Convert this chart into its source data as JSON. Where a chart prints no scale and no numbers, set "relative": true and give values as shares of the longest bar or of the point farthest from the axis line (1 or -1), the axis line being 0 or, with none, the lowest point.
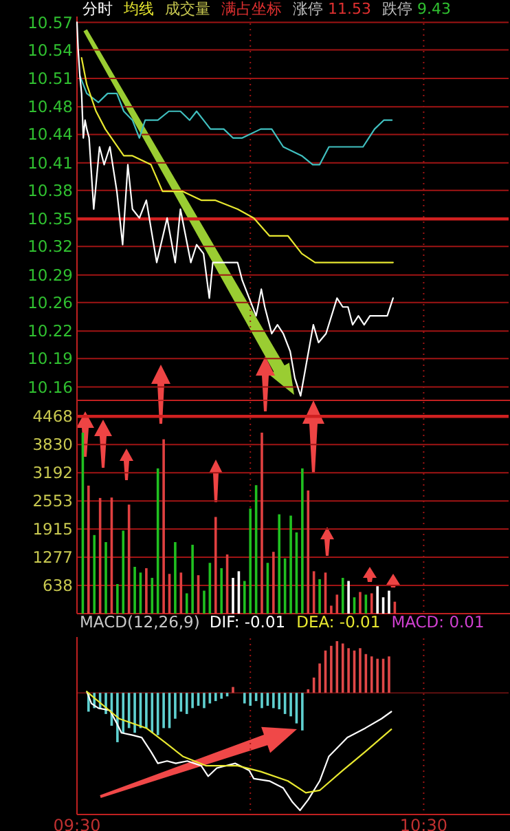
{
  "chart_data": [
    {
      "type": "line",
      "legend": "top",
      "grid": true,
      "tick_labels": "y",
      "xlim": [
        9.5,
        10.745
      ],
      "xticks": [
        9.5,
        10,
        10.5
      ],
      "ylim": [
        10.145,
        10.575
      ],
      "yticks": [
        10.57,
        {
          "value": 10.539,
          "label": "10.54"
        },
        {
          "value": 10.507,
          "label": "10.51"
        },
        {
          "value": 10.475,
          "label": "10.48"
        },
        {
          "value": 10.444,
          "label": "10.44"
        },
        {
          "value": 10.412,
          "label": "10.41"
        },
        {
          "value": 10.381,
          "label": "10.38"
        },
        {
          "value": 10.349,
          "label": "10.35"
        },
        {
          "value": 10.318,
          "label": "10.32"
        },
        {
          "value": 10.286,
          "label": "10.29"
        },
        {
          "value": 10.255,
          "label": "10.26"
        },
        {
          "value": 10.223,
          "label": "10.22"
        },
        {
          "value": 10.192,
          "label": "10.19"
        },
        10.16
      ],
      "ref_lines": [
        {
          "axis": "y",
          "value": 10.349,
          "color": "#d02020"
        }
      ],
      "annotations": [
        "成交量",
        "满占坐标",
        "涨停 11.53",
        "跌停 9.43"
      ],
      "series": [
        {
          "color": "#40c0c0",
          "x": [
            9.5083,
            9.5283,
            9.5617,
            9.5883,
            9.615,
            9.635,
            9.66,
            9.68,
            9.6967,
            9.7333,
            9.765,
            9.7983,
            9.825,
            9.845,
            9.865,
            9.885,
            9.9033,
            9.9233,
            9.95,
            9.9767,
            10.03,
            10.0617,
            10.095,
            10.1483,
            10.18,
            10.2,
            10.2267,
            10.26,
            10.325,
            10.3583,
            10.385,
            10.4083
          ],
          "values": [
            10.51,
            10.49,
            10.48,
            10.49,
            10.49,
            10.47,
            10.46,
            10.44,
            10.46,
            10.46,
            10.47,
            10.47,
            10.46,
            10.47,
            10.46,
            10.45,
            10.45,
            10.45,
            10.44,
            10.44,
            10.45,
            10.45,
            10.43,
            10.42,
            10.41,
            10.41,
            10.43,
            10.43,
            10.43,
            10.45,
            10.46,
            10.46
          ]
        },
        {
          "name": "分时",
          "color": "#ffffff",
          "x": [
            9.5,
            9.5033,
            9.5083,
            9.5133,
            9.5183,
            9.5233,
            9.5283,
            9.535,
            9.5483,
            9.565,
            9.5783,
            9.595,
            9.615,
            9.6317,
            9.6467,
            9.66,
            9.68,
            9.7,
            9.73,
            9.76,
            9.7833,
            9.7983,
            9.8283,
            9.845,
            9.865,
            9.8817,
            9.8917,
            9.93,
            9.9633,
            9.9767,
            9.9967,
            10.0167,
            10.0317,
            10.0417,
            10.0617,
            10.0783,
            10.095,
            10.115,
            10.1283,
            10.145,
            10.1633,
            10.1817,
            10.1967,
            10.2183,
            10.25,
            10.2667,
            10.2817,
            10.295,
            10.3117,
            10.3283,
            10.345,
            10.395,
            10.4117
          ],
          "values": [
            10.57,
            10.54,
            10.51,
            10.49,
            10.44,
            10.46,
            10.45,
            10.44,
            10.36,
            10.43,
            10.41,
            10.43,
            10.38,
            10.32,
            10.41,
            10.36,
            10.35,
            10.37,
            10.3,
            10.35,
            10.3,
            10.36,
            10.3,
            10.32,
            10.31,
            10.26,
            10.3,
            10.3,
            10.3,
            10.28,
            10.26,
            10.24,
            10.27,
            10.25,
            10.22,
            10.23,
            10.22,
            10.2,
            10.17,
            10.15,
            10.19,
            10.23,
            10.21,
            10.22,
            10.26,
            10.25,
            10.25,
            10.23,
            10.24,
            10.23,
            10.24,
            10.24,
            10.26
          ]
        },
        {
          "name": "均线",
          "color": "#e8e830",
          "x": [
            9.5133,
            9.5283,
            9.555,
            9.5817,
            9.635,
            9.66,
            9.7133,
            9.7467,
            9.805,
            9.8583,
            9.8983,
            9.9633,
            10.01,
            10.055,
            10.1083,
            10.1483,
            10.1867,
            10.24,
            10.305,
            10.4117
          ],
          "values": [
            10.53,
            10.5,
            10.47,
            10.45,
            10.42,
            10.42,
            10.41,
            10.38,
            10.38,
            10.37,
            10.37,
            10.36,
            10.35,
            10.33,
            10.33,
            10.31,
            10.3,
            10.3,
            10.3,
            10.3
          ]
        }
      ]
    },
    {
      "type": "bar",
      "grid": true,
      "tick_labels": "y",
      "xlim": [
        9.5,
        10.745
      ],
      "xticks": [
        9.5,
        10,
        10.5
      ],
      "ylim": [
        0,
        4800
      ],
      "yticks": [
        638,
        1277,
        1915,
        2553,
        3192,
        3830,
        4468
      ],
      "ref_lines": [
        {
          "axis": "y",
          "value": 4468,
          "color": "#d02020"
        }
      ],
      "x": [
        9.5167,
        9.5333,
        9.55,
        9.5667,
        9.5833,
        9.6,
        9.6167,
        9.6333,
        9.65,
        9.6667,
        9.6833,
        9.7,
        9.7167,
        9.7333,
        9.75,
        9.7667,
        9.7833,
        9.8,
        9.8167,
        9.8333,
        9.85,
        9.8667,
        9.8833,
        9.9,
        9.9167,
        9.9333,
        9.95,
        9.9667,
        9.9833,
        10,
        10.0167,
        10.0333,
        10.05,
        10.0667,
        10.0833,
        10.1,
        10.1167,
        10.1333,
        10.15,
        10.1667,
        10.1833,
        10.2,
        10.2167,
        10.2333,
        10.25,
        10.2667,
        10.2833,
        10.3,
        10.3167,
        10.3333,
        10.35,
        10.3667,
        10.3833,
        10.4,
        10.4167
      ],
      "values": [
        4100,
        2900,
        1780,
        2620,
        1620,
        2630,
        670,
        1880,
        2470,
        1060,
        930,
        1030,
        810,
        3290,
        3950,
        900,
        1620,
        930,
        460,
        1560,
        870,
        520,
        1150,
        2190,
        1030,
        1340,
        810,
        960,
        740,
        2380,
        2910,
        4100,
        1150,
        1400,
        2250,
        1250,
        2220,
        1840,
        3290,
        2790,
        960,
        780,
        930,
        180,
        430,
        810,
        740,
        370,
        490,
        430,
        460,
        620,
        370,
        520,
        270
      ],
      "colors": [
        "#20c020",
        "#e04040",
        "#20c020",
        "#e04040",
        "#20c020",
        "#e04040",
        "#20c020",
        "#20c020",
        "#e04040",
        "#20c020",
        "#20c020",
        "#e04040",
        "#20c020",
        "#20c020",
        "#e04040",
        "#e04040",
        "#20c020",
        "#e04040",
        "#20c020",
        "#20c020",
        "#e04040",
        "#20c020",
        "#20c020",
        "#e04040",
        "#20c020",
        "#e04040",
        "#ffffff",
        "#ffffff",
        "#20c020",
        "#20c020",
        "#20c020",
        "#e04040",
        "#20c020",
        "#e04040",
        "#20c020",
        "#20c020",
        "#20c020",
        "#20c020",
        "#20c020",
        "#e04040",
        "#e04040",
        "#20c020",
        "#e04040",
        "#e04040",
        "#e04040",
        "#20c020",
        "#ffffff",
        "#20c020",
        "#e04040",
        "#20c020",
        "#e04040",
        "#ffffff",
        "#ffffff",
        "#ffffff",
        "#e04040"
      ]
    },
    {
      "type": "bar",
      "title": "MACD(12,26,9)",
      "relative": true,
      "legend": "top",
      "ref_lines": [
        {
          "axis": "y",
          "value": 0,
          "color": "#601010"
        }
      ],
      "grid": "x",
      "tick_labels": "x",
      "xlim": [
        9.5,
        10.745
      ],
      "xticks": [
        {
          "value": 9.5,
          "label": "09:30"
        },
        {
          "value": 10,
          "label": null
        },
        {
          "value": 10.5,
          "label": "10:30"
        }
      ],
      "series": [
        {
          "type": "line",
          "name": "DIF: -0.01",
          "color": "#ffffff",
          "x": [
            9.5283,
            9.5417,
            9.5617,
            9.595,
            9.615,
            9.6283,
            9.66,
            9.6867,
            9.7133,
            9.7333,
            9.76,
            9.785,
            9.8183,
            9.8583,
            9.8783,
            9.9033,
            9.9567,
            9.9967,
            10.01,
            10.055,
            10.095,
            10.1217,
            10.1433,
            10.1667,
            10.2,
            10.2267,
            10.28,
            10.3317,
            10.3783,
            10.4067
          ],
          "values": [
            0.01,
            -0.09,
            -0.13,
            -0.15,
            -0.26,
            -0.34,
            -0.36,
            -0.38,
            -0.5,
            -0.6,
            -0.58,
            -0.6,
            -0.58,
            -0.62,
            -0.71,
            -0.64,
            -0.6,
            -0.66,
            -0.73,
            -0.75,
            -0.81,
            -0.93,
            -1,
            -0.91,
            -0.75,
            -0.54,
            -0.38,
            -0.3,
            -0.22,
            -0.16
          ]
        },
        {
          "type": "line",
          "name": "DEA: -0.01",
          "color": "#e8e830",
          "x": [
            9.5283,
            9.6217,
            9.7,
            9.7533,
            9.805,
            9.8717,
            9.9633,
            10.03,
            10.1083,
            10.16,
            10.2,
            10.2667,
            10.3317,
            10.4067
          ],
          "values": [
            0.01,
            -0.22,
            -0.3,
            -0.42,
            -0.54,
            -0.62,
            -0.62,
            -0.67,
            -0.75,
            -0.85,
            -0.83,
            -0.66,
            -0.5,
            -0.31
          ]
        },
        {
          "name": "MACD: 0.01",
          "color": "#d040d0",
          "x": [
            9.5333,
            9.55,
            9.5667,
            9.5833,
            9.6,
            9.6167,
            9.6333,
            9.65,
            9.6667,
            9.6833,
            9.7,
            9.7167,
            9.7333,
            9.75,
            9.7667,
            9.7833,
            9.8,
            9.8167,
            9.8333,
            9.85,
            9.8667,
            9.8833,
            9.9,
            9.9167,
            9.9333,
            9.95,
            9.9833,
            10,
            10.0167,
            10.0333,
            10.05,
            10.0667,
            10.0833,
            10.1,
            10.1167,
            10.1333,
            10.15,
            10.1667,
            10.1833,
            10.2,
            10.2167,
            10.2333,
            10.25,
            10.2667,
            10.2833,
            10.3,
            10.3167,
            10.3333,
            10.35,
            10.3667,
            10.3833,
            10.4
          ],
          "values": [
            -0.16,
            -0.13,
            -0.14,
            -0.18,
            -0.28,
            -0.42,
            -0.34,
            -0.3,
            -0.34,
            -0.3,
            -0.3,
            -0.34,
            -0.36,
            -0.3,
            -0.3,
            -0.22,
            -0.16,
            -0.18,
            -0.13,
            -0.11,
            -0.13,
            -0.09,
            -0.07,
            -0.05,
            -0.03,
            0.05,
            -0.09,
            -0.11,
            -0.07,
            -0.13,
            -0.11,
            -0.13,
            -0.14,
            -0.18,
            -0.2,
            -0.26,
            -0.32,
            0.03,
            0.13,
            0.25,
            0.36,
            0.4,
            0.44,
            0.42,
            0.38,
            0.36,
            0.38,
            0.33,
            0.31,
            0.29,
            0.29,
            0.31
          ],
          "colors": [
            "#60d0d0",
            "#60d0d0",
            "#60d0d0",
            "#60d0d0",
            "#60d0d0",
            "#60d0d0",
            "#60d0d0",
            "#60d0d0",
            "#60d0d0",
            "#60d0d0",
            "#60d0d0",
            "#60d0d0",
            "#60d0d0",
            "#60d0d0",
            "#60d0d0",
            "#60d0d0",
            "#60d0d0",
            "#60d0d0",
            "#60d0d0",
            "#60d0d0",
            "#60d0d0",
            "#60d0d0",
            "#60d0d0",
            "#60d0d0",
            "#60d0d0",
            "#e04848",
            "#60d0d0",
            "#60d0d0",
            "#60d0d0",
            "#60d0d0",
            "#60d0d0",
            "#60d0d0",
            "#60d0d0",
            "#60d0d0",
            "#60d0d0",
            "#60d0d0",
            "#60d0d0",
            "#e04848",
            "#e04848",
            "#e04848",
            "#e04848",
            "#e04848",
            "#e04848",
            "#e04848",
            "#e04848",
            "#e04848",
            "#e04848",
            "#e04848",
            "#e04848",
            "#e04848",
            "#e04848",
            "#e04848"
          ]
        }
      ]
    }
  ]
}
